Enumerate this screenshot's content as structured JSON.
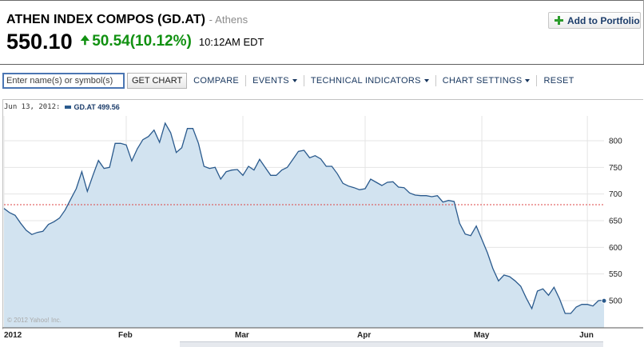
{
  "header": {
    "title": "ATHEN INDEX COMPOS (GD.AT)",
    "exchange": "- Athens",
    "price": "550.10",
    "change": "50.54(10.12%)",
    "time": "10:12AM EDT",
    "add_label": "Add to Portfolio",
    "change_color": "#119111"
  },
  "toolbar": {
    "search_placeholder": "Enter name(s) or symbol(s)",
    "get_chart": "GET CHART",
    "compare": "COMPARE",
    "events": "EVENTS",
    "technical": "TECHNICAL INDICATORS",
    "settings": "CHART SETTINGS",
    "reset": "RESET"
  },
  "legend": {
    "date": "Jun 13, 2012:",
    "series": "GD.AT 499.56"
  },
  "copyright": "© 2012 Yahoo! Inc.",
  "chart_data": {
    "type": "area",
    "series": [
      {
        "name": "GD.AT",
        "values": [
          673,
          665,
          660,
          645,
          632,
          624,
          628,
          630,
          643,
          648,
          655,
          670,
          690,
          710,
          742,
          705,
          735,
          763,
          748,
          750,
          795,
          795,
          792,
          762,
          785,
          802,
          808,
          820,
          797,
          833,
          815,
          778,
          787,
          823,
          823,
          795,
          752,
          748,
          750,
          728,
          742,
          745,
          746,
          735,
          752,
          745,
          765,
          750,
          735,
          735,
          745,
          750,
          765,
          780,
          782,
          768,
          772,
          766,
          752,
          752,
          738,
          720,
          715,
          712,
          708,
          710,
          728,
          722,
          716,
          722,
          723,
          713,
          712,
          702,
          698,
          697,
          697,
          695,
          697,
          685,
          688,
          686,
          645,
          625,
          622,
          640,
          615,
          590,
          560,
          537,
          548,
          545,
          537,
          527,
          505,
          485,
          518,
          522,
          510,
          525,
          503,
          476,
          476,
          488,
          493,
          493,
          490,
          500,
          501
        ],
        "last": 499.56,
        "color": "#2a5a8d",
        "fill": "#d2e3f0"
      }
    ],
    "x_ticks": [
      "2012",
      "Feb",
      "Mar",
      "Apr",
      "May",
      "Jun"
    ],
    "y_ticks": [
      "800",
      "750",
      "700",
      "650",
      "600",
      "550",
      "500"
    ],
    "ylim": [
      450,
      860
    ],
    "reference_line": 680,
    "grid": true
  }
}
